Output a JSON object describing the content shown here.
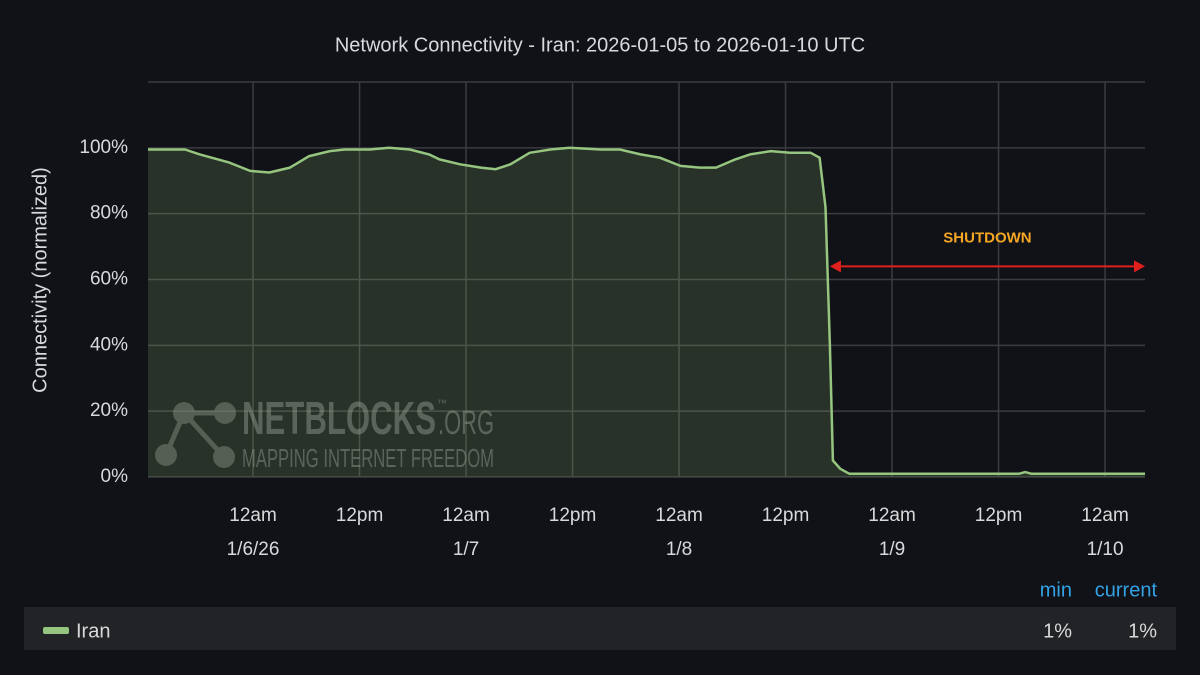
{
  "chart_data": {
    "type": "area",
    "title": "Network Connectivity - Iran: 2026-01-05 to 2026-01-10 UTC",
    "y_label": "Connectivity (normalized)",
    "x": [
      "2026-01-05 12:10",
      "2026-01-05 14:40",
      "2026-01-05 16:20",
      "2026-01-05 18:00",
      "2026-01-05 21:20",
      "2026-01-05 23:40",
      "2026-01-06 01:50",
      "2026-01-06 04:10",
      "2026-01-06 06:20",
      "2026-01-06 08:40",
      "2026-01-06 10:20",
      "2026-01-06 13:10",
      "2026-01-06 15:20",
      "2026-01-06 17:40",
      "2026-01-06 19:50",
      "2026-01-06 21:00",
      "2026-01-06 23:20",
      "2026-01-07 01:40",
      "2026-01-07 03:20",
      "2026-01-07 05:00",
      "2026-01-07 07:10",
      "2026-01-07 09:30",
      "2026-01-07 11:40",
      "2026-01-07 15:10",
      "2026-01-07 17:20",
      "2026-01-07 19:40",
      "2026-01-07 21:50",
      "2026-01-08 00:10",
      "2026-01-08 02:20",
      "2026-01-08 04:10",
      "2026-01-08 06:20",
      "2026-01-08 08:00",
      "2026-01-08 10:20",
      "2026-01-08 12:30",
      "2026-01-08 14:50",
      "2026-01-08 15:50",
      "2026-01-08 16:30",
      "2026-01-08 17:00",
      "2026-01-08 17:20",
      "2026-01-08 18:10",
      "2026-01-08 19:10",
      "2026-01-09 00:50",
      "2026-01-09 14:20",
      "2026-01-09 15:00",
      "2026-01-09 15:40",
      "2026-01-10 04:30"
    ],
    "series": [
      {
        "name": "Iran",
        "color": "#96c57f",
        "values": [
          99.5,
          99.5,
          99.5,
          98,
          95.5,
          93,
          92.5,
          94,
          97.5,
          99,
          99.5,
          99.5,
          100,
          99.5,
          98,
          96.5,
          95,
          94,
          93.5,
          95,
          98.5,
          99.5,
          100,
          99.5,
          99.5,
          98,
          97,
          94.5,
          94,
          94,
          96.5,
          98,
          99,
          98.5,
          98.5,
          97,
          82,
          40,
          5,
          2.5,
          1,
          1,
          1,
          1.5,
          1,
          1
        ],
        "legend_values": [
          1,
          1
        ],
        "legend_value_labels": [
          "1%",
          "1%"
        ]
      }
    ],
    "legend_columns": [
      "min",
      "current"
    ],
    "xlim": [
      "2026-01-05 12:10",
      "2026-01-10 04:30"
    ],
    "xticks": [
      {
        "value": "2026-01-06 00:00",
        "label": "12am",
        "sublabel": "1/6/26"
      },
      {
        "value": "2026-01-06 12:00",
        "label": "12pm"
      },
      {
        "value": "2026-01-07 00:00",
        "label": "12am",
        "sublabel": "1/7"
      },
      {
        "value": "2026-01-07 12:00",
        "label": "12pm"
      },
      {
        "value": "2026-01-08 00:00",
        "label": "12am",
        "sublabel": "1/8"
      },
      {
        "value": "2026-01-08 12:00",
        "label": "12pm"
      },
      {
        "value": "2026-01-09 00:00",
        "label": "12am",
        "sublabel": "1/9"
      },
      {
        "value": "2026-01-09 12:00",
        "label": "12pm"
      },
      {
        "value": "2026-01-10 00:00",
        "label": "12am",
        "sublabel": "1/10"
      }
    ],
    "ylim": [
      0,
      120
    ],
    "yticks": [
      {
        "value": 0,
        "label": "0%"
      },
      {
        "value": 20,
        "label": "20%"
      },
      {
        "value": 40,
        "label": "40%"
      },
      {
        "value": 60,
        "label": "60%"
      },
      {
        "value": 80,
        "label": "80%"
      },
      {
        "value": 100,
        "label": "100%"
      }
    ],
    "grid": true,
    "annotation": {
      "text": "SHUTDOWN",
      "x": [
        "2026-01-08 17:00",
        "2026-01-10 04:30"
      ],
      "y": 64,
      "color": "#e0201c",
      "text_color": "#f5a623"
    },
    "watermark": {
      "title": "NETBLOCKS",
      "suffix": ".ORG",
      "mark": "™",
      "tagline": "MAPPING INTERNET FREEDOM"
    }
  }
}
